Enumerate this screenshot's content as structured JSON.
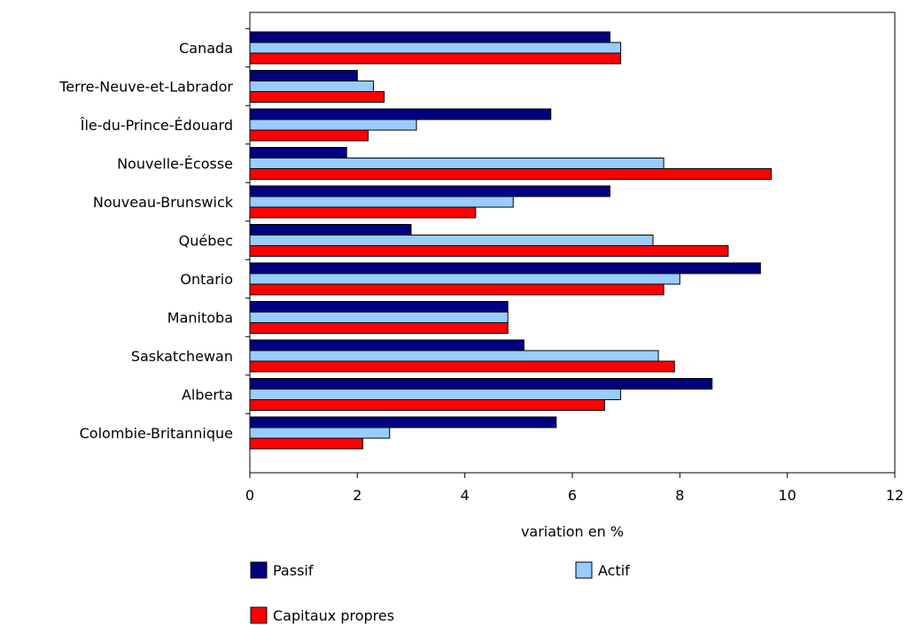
{
  "chart_data": {
    "type": "bar",
    "orientation": "horizontal",
    "categories": [
      "Canada",
      "Terre-Neuve-et-Labrador",
      "Île-du-Prince-Édouard",
      "Nouvelle-Écosse",
      "Nouveau-Brunswick",
      "Québec",
      "Ontario",
      "Manitoba",
      "Saskatchewan",
      "Alberta",
      "Colombie-Britannique"
    ],
    "series": [
      {
        "name": "Passif",
        "color": "#000080",
        "values": [
          6.7,
          2.0,
          5.6,
          1.8,
          6.7,
          3.0,
          9.5,
          4.8,
          5.1,
          8.6,
          5.7
        ]
      },
      {
        "name": "Actif",
        "color": "#99ccff",
        "values": [
          6.9,
          2.3,
          3.1,
          7.7,
          4.9,
          7.5,
          8.0,
          4.8,
          7.6,
          6.9,
          2.6
        ]
      },
      {
        "name": "Capitaux propres",
        "color": "#ff0000",
        "values": [
          6.9,
          2.5,
          2.2,
          9.7,
          4.2,
          8.9,
          7.7,
          4.8,
          7.9,
          6.6,
          2.1
        ]
      }
    ],
    "xlabel": "variation en %",
    "ylabel": "",
    "xlim": [
      0,
      12
    ],
    "xticks": [
      "0",
      "2",
      "4",
      "6",
      "8",
      "10",
      "12"
    ],
    "grid": false,
    "legend_position": "bottom"
  }
}
